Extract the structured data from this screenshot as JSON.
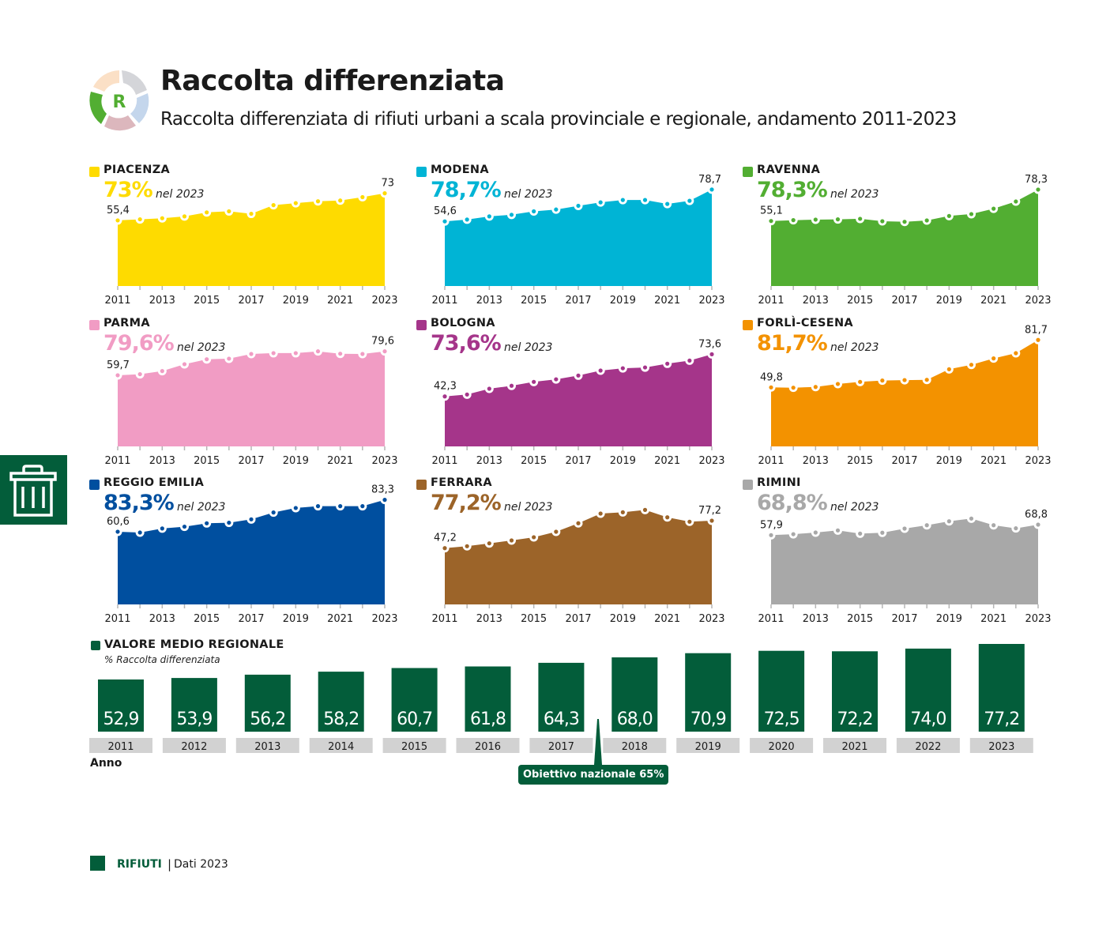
{
  "header": {
    "title": "Raccolta differenziata",
    "subtitle": "Raccolta differenziata di rifiuti urbani a scala provinciale e regionale, andamento 2011-2023",
    "logo_letter": "R",
    "logo_icon": "recycle-cycle-icon"
  },
  "side_tab": {
    "icon": "trash-bin-icon"
  },
  "nel_label": "nel 2023",
  "chart_data": [
    {
      "type": "area",
      "title": "PIACENZA",
      "highlight": "73%",
      "color": "#fedb00",
      "x": [
        2011,
        2012,
        2013,
        2014,
        2015,
        2016,
        2017,
        2018,
        2019,
        2020,
        2021,
        2022,
        2023
      ],
      "values": [
        55.4,
        56.1,
        56.8,
        58.0,
        60.6,
        61.3,
        59.7,
        65.3,
        66.6,
        67.8,
        68.3,
        70.5,
        73
      ],
      "first_label": "55,4",
      "last_label": "73",
      "xticklabels": [
        "2011",
        "2013",
        "2015",
        "2017",
        "2019",
        "2021",
        "2023"
      ],
      "ylim": [
        12.8,
        84.6
      ]
    },
    {
      "type": "area",
      "title": "MODENA",
      "highlight": "78,7%",
      "color": "#00b4d5",
      "x": [
        2011,
        2012,
        2013,
        2014,
        2015,
        2016,
        2017,
        2018,
        2019,
        2020,
        2021,
        2022,
        2023
      ],
      "values": [
        54.6,
        56.0,
        58.4,
        59.6,
        62.2,
        63.6,
        66.4,
        69.0,
        70.8,
        70.8,
        67.8,
        70.2,
        78.7
      ],
      "first_label": "54,6",
      "last_label": "78,7",
      "xticklabels": [
        "2011",
        "2013",
        "2015",
        "2017",
        "2019",
        "2021",
        "2023"
      ],
      "ylim": [
        5.7,
        89.4
      ]
    },
    {
      "type": "area",
      "title": "RAVENNA",
      "highlight": "78,3%",
      "color": "#52ae32",
      "x": [
        2011,
        2012,
        2013,
        2014,
        2015,
        2016,
        2017,
        2018,
        2019,
        2020,
        2021,
        2022,
        2023
      ],
      "values": [
        55.1,
        55.7,
        56.1,
        56.3,
        56.7,
        54.9,
        54.5,
        55.5,
        58.8,
        60.2,
        64.2,
        69.5,
        78.3
      ],
      "first_label": "55,1",
      "last_label": "78,3",
      "xticklabels": [
        "2011",
        "2013",
        "2015",
        "2017",
        "2019",
        "2021",
        "2023"
      ],
      "ylim": [
        7.0,
        88.8
      ]
    },
    {
      "type": "area",
      "title": "PARMA",
      "highlight": "79,6%",
      "color": "#f19cc4",
      "x": [
        2011,
        2012,
        2013,
        2014,
        2015,
        2016,
        2017,
        2018,
        2019,
        2020,
        2021,
        2022,
        2023
      ],
      "values": [
        59.7,
        60.6,
        63.2,
        68.9,
        73.0,
        73.5,
        77.4,
        78.1,
        78.1,
        79.6,
        77.6,
        77.4,
        79.6
      ],
      "first_label": "59,7",
      "last_label": "79,6",
      "xticklabels": [
        "2011",
        "2013",
        "2015",
        "2017",
        "2019",
        "2021",
        "2023"
      ],
      "ylim": [
        0.6,
        92.5
      ]
    },
    {
      "type": "area",
      "title": "BOLOGNA",
      "highlight": "73,6%",
      "color": "#a5358a",
      "x": [
        2011,
        2012,
        2013,
        2014,
        2015,
        2016,
        2017,
        2018,
        2019,
        2020,
        2021,
        2022,
        2023
      ],
      "values": [
        42.3,
        43.7,
        48.0,
        50.2,
        53.1,
        55.0,
        57.8,
        61.5,
        63.2,
        63.8,
        66.6,
        68.9,
        73.6
      ],
      "first_label": "42,3",
      "last_label": "73,6",
      "xticklabels": [
        "2011",
        "2013",
        "2015",
        "2017",
        "2019",
        "2021",
        "2023"
      ],
      "ylim": [
        5.2,
        87.3
      ]
    },
    {
      "type": "area",
      "title": "FORLÌ-CESENA",
      "highlight": "81,7%",
      "color": "#f39200",
      "x": [
        2011,
        2012,
        2013,
        2014,
        2015,
        2016,
        2017,
        2018,
        2019,
        2020,
        2021,
        2022,
        2023
      ],
      "values": [
        49.8,
        49.6,
        50.1,
        52.1,
        53.5,
        54.4,
        54.7,
        54.9,
        62.0,
        65.0,
        69.3,
        72.8,
        81.7
      ],
      "first_label": "49,8",
      "last_label": "81,7",
      "xticklabels": [
        "2011",
        "2013",
        "2015",
        "2017",
        "2019",
        "2021",
        "2023"
      ],
      "ylim": [
        10.1,
        84.5
      ]
    },
    {
      "type": "area",
      "title": "REGGIO EMILIA",
      "highlight": "83,3%",
      "color": "#004f9f",
      "x": [
        2011,
        2012,
        2013,
        2014,
        2015,
        2016,
        2017,
        2018,
        2019,
        2020,
        2021,
        2022,
        2023
      ],
      "values": [
        60.6,
        60.0,
        62.9,
        64.2,
        66.6,
        67.0,
        69.4,
        74.3,
        77.5,
        78.8,
        78.8,
        78.8,
        83.3
      ],
      "first_label": "60,6",
      "last_label": "83,3",
      "xticklabels": [
        "2011",
        "2013",
        "2015",
        "2017",
        "2019",
        "2021",
        "2023"
      ],
      "ylim": [
        8.8,
        87.6
      ]
    },
    {
      "type": "area",
      "title": "FERRARA",
      "highlight": "77,2%",
      "color": "#9c6429",
      "x": [
        2011,
        2012,
        2013,
        2014,
        2015,
        2016,
        2017,
        2018,
        2019,
        2020,
        2021,
        2022,
        2023
      ],
      "values": [
        47.2,
        49.3,
        52.4,
        55.6,
        59.1,
        65.1,
        74.4,
        85.0,
        86.4,
        89.0,
        80.9,
        76.1,
        77.2
      ],
      "first_label": "47,2",
      "last_label": "77,2",
      "xticklabels": [
        "2011",
        "2013",
        "2015",
        "2017",
        "2019",
        "2021",
        "2023"
      ],
      "ylim": [
        -14.4,
        106.6
      ]
    },
    {
      "type": "area",
      "title": "RIMINI",
      "highlight": "68,8%",
      "color": "#a8a8a8",
      "x": [
        2011,
        2012,
        2013,
        2014,
        2015,
        2016,
        2017,
        2018,
        2019,
        2020,
        2021,
        2022,
        2023
      ],
      "values": [
        57.9,
        58.9,
        60.6,
        62.8,
        59.5,
        60.4,
        64.7,
        68.2,
        72.3,
        75.1,
        68.2,
        65.0,
        68.8
      ],
      "first_label": "57,9",
      "last_label": "68,8",
      "xticklabels": [
        "2011",
        "2013",
        "2015",
        "2017",
        "2019",
        "2021",
        "2023"
      ],
      "ylim": [
        -14.0,
        100.8
      ]
    },
    {
      "type": "bar",
      "title": "VALORE MEDIO REGIONALE",
      "subtitle": "% Raccolta differenziata",
      "xlabel": "Anno",
      "color": "#035d3a",
      "categories": [
        "2011",
        "2012",
        "2013",
        "2014",
        "2015",
        "2016",
        "2017",
        "2018",
        "2019",
        "2020",
        "2021",
        "2022",
        "2023"
      ],
      "values": [
        52.9,
        53.9,
        56.2,
        58.2,
        60.7,
        61.8,
        64.3,
        68.0,
        70.9,
        72.5,
        72.2,
        74.0,
        77.2
      ],
      "value_labels": [
        "52,9",
        "53,9",
        "56,2",
        "58,2",
        "60,7",
        "61,8",
        "64,3",
        "68,0",
        "70,9",
        "72,5",
        "72,2",
        "74,0",
        "77,2"
      ],
      "ylim": [
        17.2,
        77.2
      ],
      "annotation": {
        "text": "Obiettivo nazionale 65%",
        "between": [
          "2017",
          "2018"
        ]
      }
    }
  ],
  "footer": {
    "section": "RIFIUTI",
    "separator": "|",
    "data_label": "Dati 2023"
  }
}
